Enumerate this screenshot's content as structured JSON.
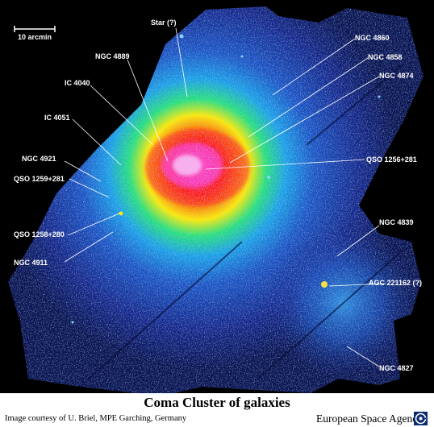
{
  "image": {
    "scale_bar_label": "10 arcmin",
    "labels": [
      {
        "id": "star",
        "text": "Star (?)"
      },
      {
        "id": "ngc4860",
        "text": "NGC 4860"
      },
      {
        "id": "ngc4889",
        "text": "NGC 4889"
      },
      {
        "id": "ngc4858",
        "text": "NGC 4858"
      },
      {
        "id": "ngc4874",
        "text": "NGC 4874"
      },
      {
        "id": "ic4040",
        "text": "IC 4040"
      },
      {
        "id": "ic4051",
        "text": "IC 4051"
      },
      {
        "id": "ngc4921",
        "text": "NGC 4921"
      },
      {
        "id": "qso1256",
        "text": "QSO 1256+281"
      },
      {
        "id": "qso1259",
        "text": "QSO 1259+281"
      },
      {
        "id": "qso1258",
        "text": "QSO 1258+280"
      },
      {
        "id": "ngc4911",
        "text": "NGC 4911"
      },
      {
        "id": "ngc4839",
        "text": "NGC 4839"
      },
      {
        "id": "agc221162",
        "text": "AGC 221162 (?)"
      },
      {
        "id": "ngc4827",
        "text": "NGC 4827"
      }
    ]
  },
  "caption": {
    "title": "Coma Cluster of galaxies",
    "credit": "Image courtesy of U. Briel, MPE Garching, Germany",
    "agency": "European Space Agency"
  },
  "colors": {
    "background": "#000000",
    "faint_emission": "#16288a",
    "mid_emission": "#1aa0e6",
    "green_emission": "#27e07a",
    "yellow_emission": "#ffea00",
    "red_emission": "#ff1a1a",
    "core_emission": "#ff66e6",
    "label_text": "#ffffff"
  }
}
